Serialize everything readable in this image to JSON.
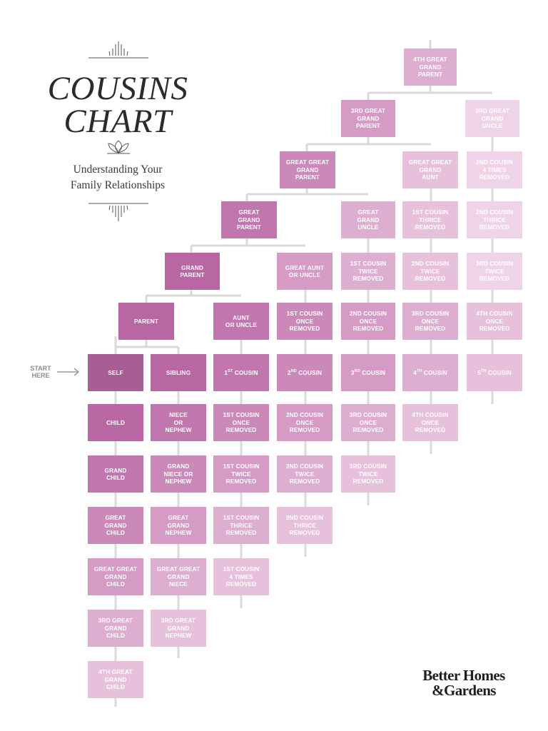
{
  "header": {
    "title_line1": "COUSINS",
    "title_line2": "CHART",
    "subtitle_line1": "Understanding Your",
    "subtitle_line2": "Family Relationships",
    "ornament_top": "sunburst-ornament",
    "ornament_middle": "lotus-ornament",
    "ornament_bottom": "sunburst-ornament"
  },
  "start_label": {
    "line1": "START",
    "line2": "HERE"
  },
  "brand": {
    "line1": "Better Homes",
    "line2": "&Gardens"
  },
  "colors": {
    "self": "#a85d94",
    "level1": "#b967a3",
    "level2": "#c177ae",
    "level3": "#cb89b9",
    "level4": "#d59bc5",
    "level5": "#deaed1",
    "level6": "#e7c1dc",
    "level7": "#efd4e7",
    "line": "#d9d9d9",
    "arrow": "#9a9a9a"
  },
  "boxes": [
    {
      "id": "4g-gp",
      "label": "4TH GREAT\nGRAND\nPARENT",
      "color": "#deaed1"
    },
    {
      "id": "3g-gp",
      "label": "3RD GREAT\nGRAND\nPARENT",
      "color": "#d59bc5"
    },
    {
      "id": "3g-gu",
      "label": "3RD GREAT\nGRAND\nUNCLE",
      "color": "#efd4e7"
    },
    {
      "id": "gg-gp",
      "label": "GREAT GREAT\nGRAND\nPARENT",
      "color": "#cb89b9"
    },
    {
      "id": "gg-ga",
      "label": "GREAT GREAT\nGRAND\nAUNT",
      "color": "#e7c1dc"
    },
    {
      "id": "2c-4r",
      "label": "2ND COUSIN\n4 TIMES\nREMOVED",
      "color": "#efd4e7"
    },
    {
      "id": "g-gp",
      "label": "GREAT\nGRAND\nPARENT",
      "color": "#c177ae"
    },
    {
      "id": "g-gu",
      "label": "GREAT\nGRAND\nUNCLE",
      "color": "#deaed1"
    },
    {
      "id": "1c-3r-up",
      "label": "1ST COUSIN\nTHRICE\nREMOVED",
      "color": "#e7c1dc"
    },
    {
      "id": "2c-3r-up",
      "label": "2ND COUSIN\nTHRICE\nREMOVED",
      "color": "#efd4e7"
    },
    {
      "id": "gp",
      "label": "GRAND\nPARENT",
      "color": "#b967a3"
    },
    {
      "id": "ga",
      "label": "GREAT AUNT\nOR UNCLE",
      "color": "#d59bc5"
    },
    {
      "id": "1c-2r-up",
      "label": "1ST COUSIN\nTWICE\nREMOVED",
      "color": "#deaed1"
    },
    {
      "id": "2c-2r-up",
      "label": "2ND COUSIN\nTWICE\nREMOVED",
      "color": "#e7c1dc"
    },
    {
      "id": "3c-2r-up",
      "label": "3RD COUSIN\nTWICE\nREMOVED",
      "color": "#efd4e7"
    },
    {
      "id": "parent",
      "label": "PARENT",
      "color": "#b967a3"
    },
    {
      "id": "aunt",
      "label": "AUNT\nOR UNCLE",
      "color": "#c177ae"
    },
    {
      "id": "1c-1r-up",
      "label": "1ST COUSIN\nONCE\nREMOVED",
      "color": "#cb89b9"
    },
    {
      "id": "2c-1r-up",
      "label": "2ND COUSIN\nONCE\nREMOVED",
      "color": "#d59bc5"
    },
    {
      "id": "3c-1r-up",
      "label": "3RD COUSIN\nONCE\nREMOVED",
      "color": "#deaed1"
    },
    {
      "id": "4c-1r-up",
      "label": "4TH COUSIN\nONCE\nREMOVED",
      "color": "#e7c1dc"
    },
    {
      "id": "self",
      "label": "SELF",
      "color": "#a85d94"
    },
    {
      "id": "sibling",
      "label": "SIBLING",
      "color": "#b967a3"
    },
    {
      "id": "c1",
      "label": "1",
      "sup": "ST",
      "suffix": " COUSIN",
      "color": "#c177ae"
    },
    {
      "id": "c2",
      "label": "2",
      "sup": "ND",
      "suffix": " COUSIN",
      "color": "#cb89b9"
    },
    {
      "id": "c3",
      "label": "3",
      "sup": "RD",
      "suffix": " COUSIN",
      "color": "#d59bc5"
    },
    {
      "id": "c4",
      "label": "4",
      "sup": "TH",
      "suffix": " COUSIN",
      "color": "#deaed1"
    },
    {
      "id": "c5",
      "label": "5",
      "sup": "TH",
      "suffix": " COUSIN",
      "color": "#e7c1dc"
    },
    {
      "id": "child",
      "label": "CHILD",
      "color": "#b967a3"
    },
    {
      "id": "niece",
      "label": "NIECE\nOR\nNEPHEW",
      "color": "#c177ae"
    },
    {
      "id": "1c-1r",
      "label": "1ST COUSIN\nONCE\nREMOVED",
      "color": "#cb89b9"
    },
    {
      "id": "2c-1r",
      "label": "2ND COUSIN\nONCE\nREMOVED",
      "color": "#d59bc5"
    },
    {
      "id": "3c-1r",
      "label": "3RD COUSIN\nONCE\nREMOVED",
      "color": "#deaed1"
    },
    {
      "id": "4c-1r",
      "label": "4TH COUSIN\nONCE\nREMOVED",
      "color": "#e7c1dc"
    },
    {
      "id": "gchild",
      "label": "GRAND\nCHILD",
      "color": "#c177ae"
    },
    {
      "id": "gniece",
      "label": "GRAND\nNIECE OR\nNEPHEW",
      "color": "#cb89b9"
    },
    {
      "id": "1c-2r",
      "label": "1ST COUSIN\nTWICE\nREMOVED",
      "color": "#d59bc5"
    },
    {
      "id": "2c-2r",
      "label": "2ND COUSIN\nTWICE\nREMOVED",
      "color": "#deaed1"
    },
    {
      "id": "3c-2r",
      "label": "3RD COUSIN\nTWICE\nREMOVED",
      "color": "#e7c1dc"
    },
    {
      "id": "ggchild",
      "label": "GREAT\nGRAND\nCHILD",
      "color": "#cb89b9"
    },
    {
      "id": "ggnephew",
      "label": "GREAT\nGRAND\nNEPHEW",
      "color": "#d59bc5"
    },
    {
      "id": "1c-3r",
      "label": "1ST COUSIN\nTHRICE\nREMOVED",
      "color": "#deaed1"
    },
    {
      "id": "2c-3r",
      "label": "2ND COUSIN\nTHRICE\nREMOVED",
      "color": "#e7c1dc"
    },
    {
      "id": "gggchild",
      "label": "GREAT GREAT\nGRAND\nCHILD",
      "color": "#d59bc5"
    },
    {
      "id": "gggniece",
      "label": "GREAT GREAT\nGRAND\nNIECE",
      "color": "#deaed1"
    },
    {
      "id": "1c-4r",
      "label": "1ST COUSIN\n4 TIMES\nREMOVED",
      "color": "#e7c1dc"
    },
    {
      "id": "3g-gchild",
      "label": "3RD GREAT\nGRAND\nCHILD",
      "color": "#deaed1"
    },
    {
      "id": "3g-gnephew",
      "label": "3RD GREAT\nGRAND\nNEPHEW",
      "color": "#e7c1dc"
    },
    {
      "id": "4g-gchild",
      "label": "4TH GREAT\nGRAND\nCHILD",
      "color": "#e7c1dc"
    }
  ]
}
